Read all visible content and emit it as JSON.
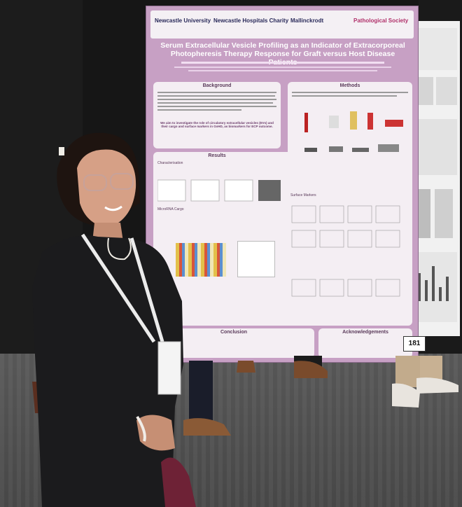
{
  "poster": {
    "logos": {
      "logo1": "Newcastle University",
      "logo2": "Newcastle Hospitals Charity",
      "logo3": "Mallinckrodt",
      "logo4": "Pathological Society"
    },
    "title_line1": "Serum Extracellular Vesicle Profiling as an Indicator of Extracorporeal",
    "title_line2": "Photopheresis Therapy Response for Graft versus Host Disease Patients",
    "sections": {
      "background": "Background",
      "methods": "Methods",
      "results": "Results",
      "characterisation": "Characterisation",
      "microrna_cargo": "MicroRNA Cargo",
      "surface_markers": "Surface Markers",
      "conclusion": "Conclusion",
      "acknowledgements": "Acknowledgements"
    },
    "aim": "We aim to investigate the role of circulatory extracellular vesicles (EVs) and their cargo and surface markers in GvHD, as biomarkers for ECP outcome."
  },
  "poster_number": "181",
  "colors": {
    "poster_bg": "#c7a0c4",
    "panel_bg": "#f4eef3",
    "board": "#161616"
  }
}
